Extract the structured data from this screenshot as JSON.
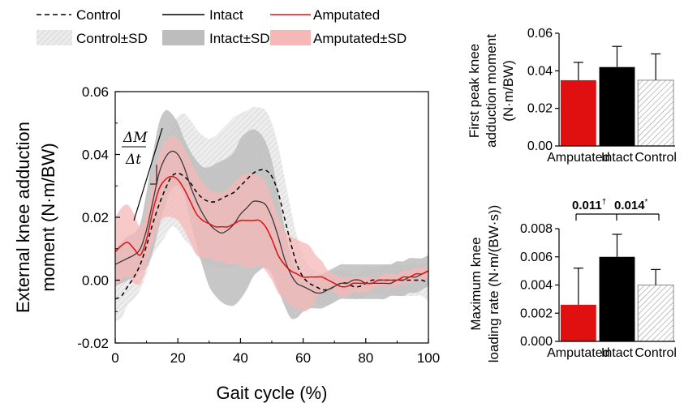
{
  "legend": {
    "control": "Control",
    "intact": "Intact",
    "amputated": "Amputated",
    "control_sd": "Control±SD",
    "intact_sd": "Intact±SD",
    "amputated_sd": "Amputated±SD"
  },
  "colors": {
    "amputated": "#e01010",
    "intact": "#000000",
    "control_fill": "#ffffff",
    "intact_band": "#bdbdbd",
    "amputated_band": "#f6b7b7",
    "control_band": "#e6e6e6"
  },
  "annotation": {
    "numerator": "ΔM",
    "denominator": "Δt"
  },
  "chart_data": [
    {
      "type": "line",
      "xlabel": "Gait cycle (%)",
      "ylabel_line1": "External knee adduction",
      "ylabel_line2": "moment (N·m/BW)",
      "xlim": [
        0,
        100
      ],
      "ylim": [
        -0.02,
        0.06
      ],
      "x_ticks": [
        "0",
        "20",
        "40",
        "60",
        "80",
        "100"
      ],
      "y_ticks": [
        "-0.02",
        "0.00",
        "0.02",
        "0.04",
        "0.06"
      ],
      "x": [
        0,
        2,
        4,
        6,
        8,
        10,
        12,
        14,
        16,
        18,
        20,
        22,
        24,
        26,
        28,
        30,
        32,
        34,
        36,
        38,
        40,
        42,
        44,
        46,
        48,
        50,
        52,
        54,
        56,
        58,
        60,
        62,
        64,
        66,
        68,
        70,
        72,
        74,
        76,
        78,
        80,
        82,
        84,
        86,
        88,
        90,
        92,
        94,
        96,
        98,
        100
      ],
      "series": [
        {
          "name": "Control",
          "values": [
            -0.006,
            -0.005,
            -0.002,
            0.001,
            0.005,
            0.011,
            0.018,
            0.024,
            0.029,
            0.033,
            0.034,
            0.033,
            0.031,
            0.028,
            0.026,
            0.025,
            0.025,
            0.026,
            0.027,
            0.028,
            0.03,
            0.032,
            0.034,
            0.035,
            0.035,
            0.033,
            0.028,
            0.02,
            0.012,
            0.005,
            0.001,
            -0.001,
            -0.002,
            -0.003,
            -0.003,
            -0.002,
            -0.001,
            -0.001,
            -0.002,
            -0.002,
            -0.001,
            -0.0,
            0.0,
            0.0,
            0.0,
            0.0,
            0.0,
            0.0,
            -0.0,
            -0.0,
            -0.001
          ],
          "sd_upper": [
            0.001,
            0.002,
            0.004,
            0.008,
            0.013,
            0.02,
            0.028,
            0.037,
            0.044,
            0.049,
            0.052,
            0.053,
            0.051,
            0.048,
            0.046,
            0.045,
            0.046,
            0.048,
            0.05,
            0.052,
            0.053,
            0.054,
            0.055,
            0.055,
            0.054,
            0.05,
            0.043,
            0.033,
            0.023,
            0.014,
            0.008,
            0.004,
            0.003,
            0.002,
            0.002,
            0.003,
            0.003,
            0.003,
            0.002,
            0.002,
            0.003,
            0.004,
            0.004,
            0.005,
            0.005,
            0.005,
            0.005,
            0.005,
            0.005,
            0.005,
            0.005
          ],
          "sd_lower": [
            -0.013,
            -0.012,
            -0.008,
            -0.006,
            -0.003,
            0.002,
            0.008,
            0.011,
            0.014,
            0.017,
            0.016,
            0.013,
            0.011,
            0.008,
            0.006,
            0.005,
            0.004,
            0.004,
            0.004,
            0.004,
            0.007,
            0.01,
            0.013,
            0.015,
            0.016,
            0.016,
            0.013,
            0.007,
            0.001,
            -0.004,
            -0.006,
            -0.006,
            -0.007,
            -0.008,
            -0.008,
            -0.007,
            -0.005,
            -0.005,
            -0.006,
            -0.006,
            -0.005,
            -0.004,
            -0.004,
            -0.005,
            -0.005,
            -0.005,
            -0.005,
            -0.005,
            -0.005,
            -0.005,
            -0.007
          ]
        },
        {
          "name": "Intact",
          "values": [
            0.005,
            0.006,
            0.007,
            0.008,
            0.01,
            0.016,
            0.025,
            0.034,
            0.039,
            0.041,
            0.04,
            0.036,
            0.03,
            0.025,
            0.021,
            0.018,
            0.016,
            0.015,
            0.016,
            0.018,
            0.021,
            0.023,
            0.025,
            0.025,
            0.024,
            0.02,
            0.014,
            0.007,
            0.002,
            -0.001,
            -0.002,
            -0.003,
            -0.004,
            -0.004,
            -0.003,
            -0.002,
            -0.001,
            -0.001,
            -0.0,
            -0.0,
            -0.001,
            -0.001,
            -0.001,
            -0.001,
            -0.001,
            0.0,
            0.0,
            0.001,
            0.001,
            0.002,
            0.003
          ],
          "sd_upper": [
            0.01,
            0.012,
            0.014,
            0.015,
            0.018,
            0.028,
            0.04,
            0.05,
            0.054,
            0.053,
            0.05,
            0.045,
            0.041,
            0.038,
            0.036,
            0.036,
            0.037,
            0.038,
            0.039,
            0.041,
            0.045,
            0.047,
            0.048,
            0.047,
            0.044,
            0.038,
            0.028,
            0.017,
            0.008,
            0.003,
            0.001,
            0.0,
            0.001,
            0.002,
            0.003,
            0.004,
            0.005,
            0.005,
            0.005,
            0.005,
            0.005,
            0.005,
            0.005,
            0.005,
            0.005,
            0.006,
            0.006,
            0.007,
            0.007,
            0.007,
            0.008
          ],
          "sd_lower": [
            -0.002,
            -0.001,
            0.0,
            0.001,
            0.003,
            0.004,
            0.009,
            0.017,
            0.024,
            0.029,
            0.03,
            0.027,
            0.019,
            0.011,
            0.004,
            -0.002,
            -0.005,
            -0.007,
            -0.008,
            -0.008,
            -0.006,
            -0.003,
            0.001,
            0.003,
            0.004,
            0.002,
            -0.003,
            -0.008,
            -0.012,
            -0.012,
            -0.01,
            -0.009,
            -0.009,
            -0.009,
            -0.008,
            -0.007,
            -0.006,
            -0.006,
            -0.006,
            -0.006,
            -0.006,
            -0.006,
            -0.006,
            -0.006,
            -0.005,
            -0.005,
            -0.005,
            -0.004,
            -0.004,
            -0.003,
            -0.002
          ]
        },
        {
          "name": "Amputated",
          "values": [
            0.009,
            0.011,
            0.012,
            0.01,
            0.008,
            0.013,
            0.022,
            0.029,
            0.032,
            0.033,
            0.032,
            0.029,
            0.025,
            0.021,
            0.019,
            0.018,
            0.017,
            0.017,
            0.017,
            0.018,
            0.019,
            0.019,
            0.019,
            0.019,
            0.017,
            0.013,
            0.008,
            0.005,
            0.003,
            0.002,
            0.001,
            0.001,
            0.001,
            0.001,
            0.0,
            -0.001,
            -0.002,
            -0.002,
            -0.001,
            -0.001,
            -0.001,
            -0.001,
            -0.0,
            0.0,
            0.0,
            0.0,
            0.001,
            0.001,
            0.002,
            0.002,
            0.003
          ],
          "sd_upper": [
            0.02,
            0.023,
            0.024,
            0.021,
            0.017,
            0.022,
            0.032,
            0.04,
            0.044,
            0.046,
            0.045,
            0.042,
            0.038,
            0.034,
            0.031,
            0.029,
            0.028,
            0.028,
            0.029,
            0.031,
            0.033,
            0.034,
            0.034,
            0.033,
            0.031,
            0.026,
            0.02,
            0.016,
            0.014,
            0.013,
            0.012,
            0.011,
            0.008,
            0.006,
            0.003,
            0.002,
            0.001,
            0.001,
            0.001,
            0.001,
            0.001,
            0.001,
            0.001,
            0.002,
            0.002,
            0.002,
            0.003,
            0.003,
            0.004,
            0.004,
            0.005
          ],
          "sd_lower": [
            -0.002,
            0.0,
            0.001,
            -0.001,
            -0.001,
            0.004,
            0.012,
            0.018,
            0.02,
            0.02,
            0.019,
            0.016,
            0.012,
            0.008,
            0.007,
            0.007,
            0.006,
            0.006,
            0.005,
            0.005,
            0.005,
            0.004,
            0.004,
            0.005,
            0.003,
            0.0,
            -0.004,
            -0.006,
            -0.008,
            -0.009,
            -0.01,
            -0.009,
            -0.006,
            -0.004,
            -0.003,
            -0.004,
            -0.005,
            -0.005,
            -0.004,
            -0.004,
            -0.004,
            -0.003,
            -0.002,
            -0.002,
            -0.002,
            -0.002,
            -0.001,
            -0.001,
            0.0,
            0.0,
            0.001
          ]
        }
      ]
    },
    {
      "type": "bar",
      "ylabel_line1": "First peak knee",
      "ylabel_line2": "adduction moment",
      "ylabel_line3": "(N·m/BW)",
      "categories": [
        "Amputated",
        "Intact",
        "Control"
      ],
      "values": [
        0.035,
        0.042,
        0.035
      ],
      "errors": [
        0.0095,
        0.011,
        0.014
      ],
      "ylim": [
        0,
        0.06
      ],
      "y_ticks": [
        "0.00",
        "0.02",
        "0.04",
        "0.06"
      ]
    },
    {
      "type": "bar",
      "ylabel_line1": "Maximum knee",
      "ylabel_line2": "loading rate (N·m/(BW·s))",
      "categories": [
        "Amputated",
        "Intact",
        "Control"
      ],
      "values": [
        0.0026,
        0.006,
        0.004
      ],
      "errors": [
        0.0026,
        0.0016,
        0.0011
      ],
      "ylim": [
        0,
        0.008
      ],
      "y_ticks": [
        "0.000",
        "0.002",
        "0.004",
        "0.006",
        "0.008"
      ],
      "significance": [
        "0.011",
        "†",
        "0.014",
        "*"
      ]
    }
  ]
}
